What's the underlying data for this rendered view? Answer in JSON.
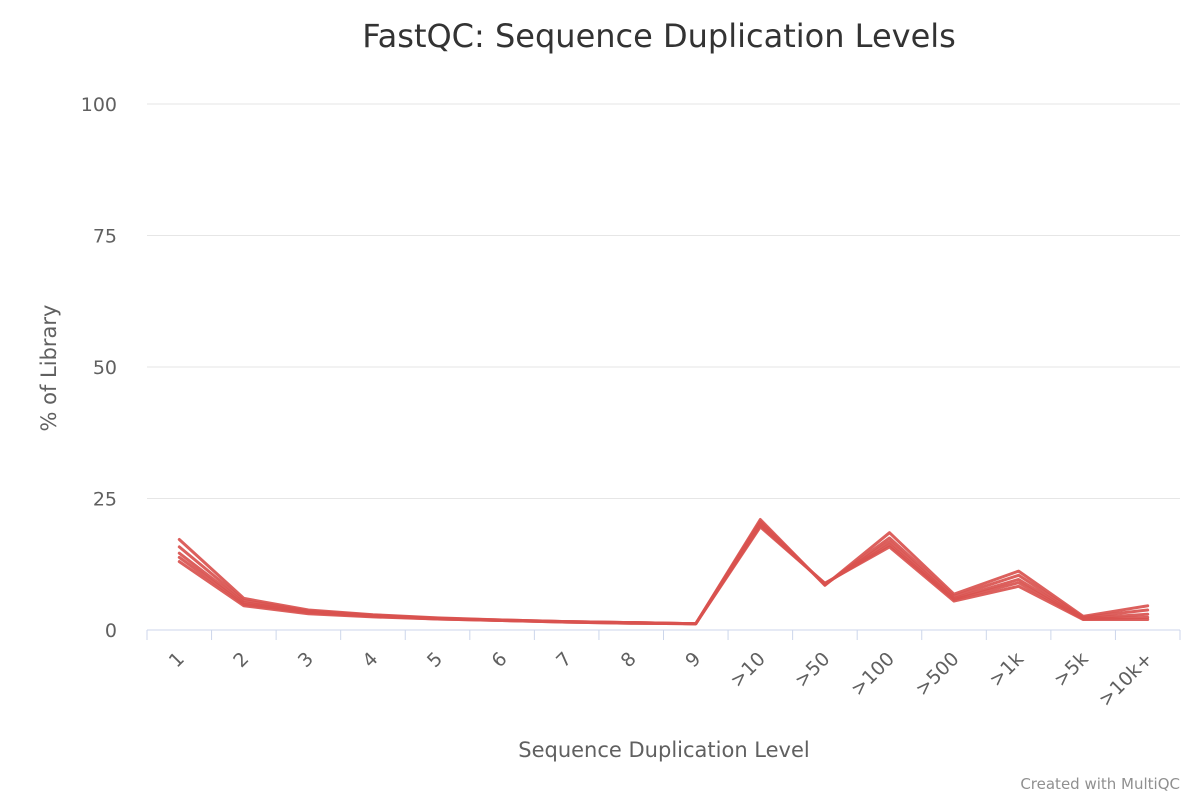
{
  "chart_data": {
    "type": "line",
    "title": "FastQC: Sequence Duplication Levels",
    "xlabel": "Sequence Duplication Level",
    "ylabel": "% of Library",
    "credit": "Created with MultiQC",
    "ylim": [
      0,
      100
    ],
    "yticks": [
      0,
      25,
      50,
      75,
      100
    ],
    "grid": true,
    "legend": "none",
    "line_color": "#d9534f",
    "categories": [
      "1",
      "2",
      "3",
      "4",
      "5",
      "6",
      "7",
      "8",
      "9",
      ">10",
      ">50",
      ">100",
      ">500",
      ">1k",
      ">5k",
      ">10k+"
    ],
    "series": [
      {
        "values": [
          17.2,
          6.0,
          3.8,
          2.9,
          2.3,
          1.9,
          1.6,
          1.4,
          1.2,
          21.0,
          8.5,
          18.5,
          6.8,
          11.2,
          2.6,
          4.6
        ]
      },
      {
        "values": [
          15.8,
          5.6,
          3.6,
          2.8,
          2.2,
          1.9,
          1.6,
          1.4,
          1.2,
          20.6,
          8.6,
          17.5,
          6.4,
          10.4,
          2.4,
          3.8
        ]
      },
      {
        "values": [
          14.6,
          5.2,
          3.4,
          2.7,
          2.2,
          1.8,
          1.6,
          1.4,
          1.2,
          20.2,
          8.7,
          16.8,
          6.0,
          9.6,
          2.2,
          3.0
        ]
      },
      {
        "values": [
          13.8,
          4.9,
          3.3,
          2.6,
          2.1,
          1.8,
          1.5,
          1.3,
          1.2,
          19.9,
          8.8,
          16.2,
          5.8,
          9.0,
          2.1,
          2.4
        ]
      },
      {
        "values": [
          13.0,
          4.6,
          3.1,
          2.5,
          2.1,
          1.8,
          1.5,
          1.3,
          1.2,
          19.6,
          8.9,
          15.8,
          5.5,
          8.3,
          2.0,
          2.0
        ]
      }
    ]
  }
}
